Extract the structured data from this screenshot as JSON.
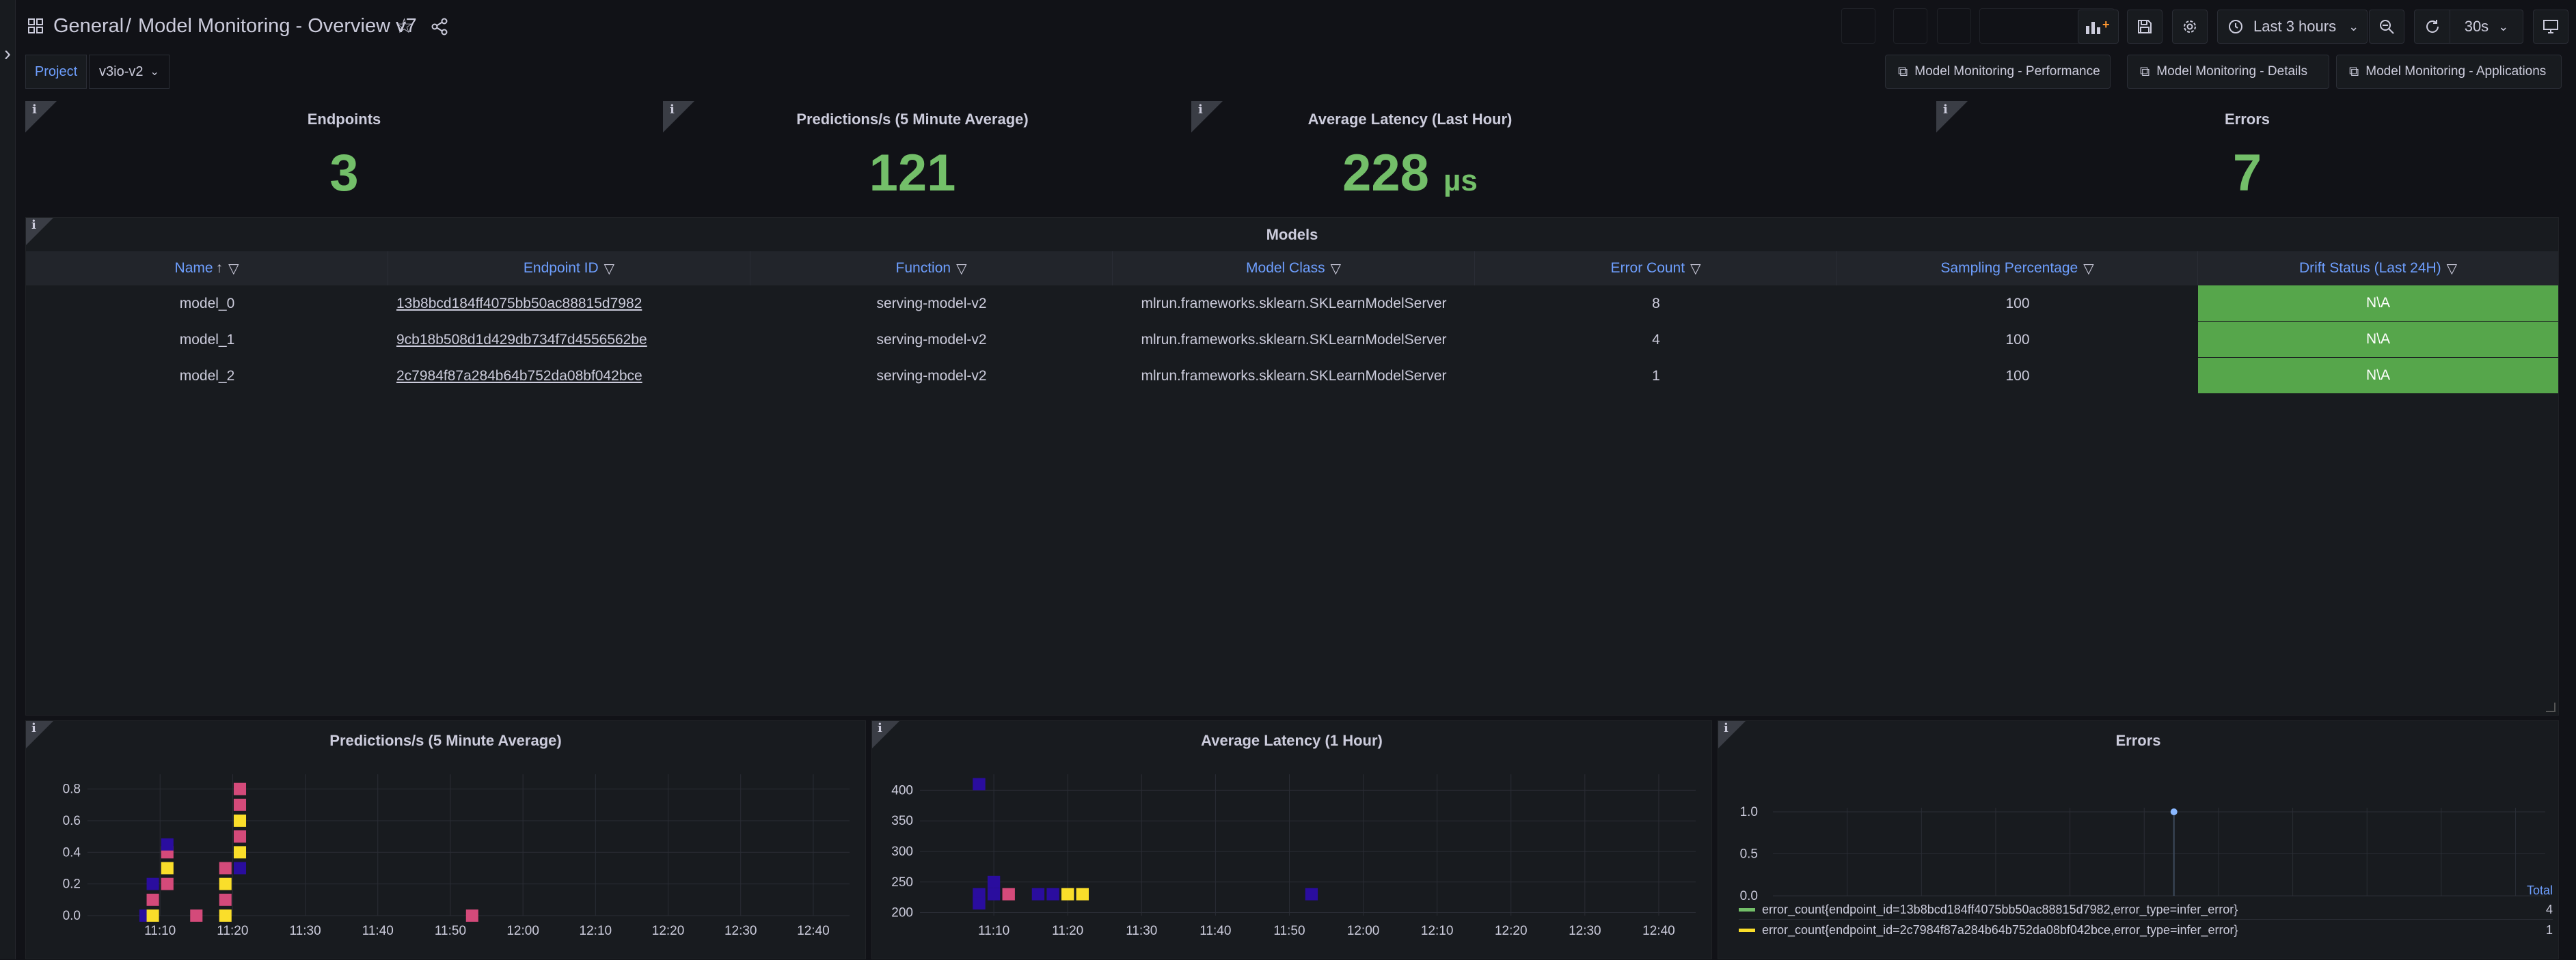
{
  "header": {
    "folder": "General",
    "separator": "/",
    "dashboard_title": "Model Monitoring - Overview v7",
    "time_range": "Last 3 hours",
    "refresh_interval": "30s"
  },
  "variables": {
    "project_label": "Project",
    "project_value": "v3io-v2"
  },
  "dashboard_links": [
    {
      "label": "Model Monitoring - Performance"
    },
    {
      "label": "Model Monitoring - Details"
    },
    {
      "label": "Model Monitoring - Applications"
    }
  ],
  "stats": [
    {
      "title": "Endpoints",
      "value": "3",
      "unit": ""
    },
    {
      "title": "Predictions/s (5 Minute Average)",
      "value": "121",
      "unit": ""
    },
    {
      "title": "Average Latency (Last Hour)",
      "value": "228",
      "unit": "µs"
    },
    {
      "title": "Errors",
      "value": "7",
      "unit": ""
    }
  ],
  "models_table": {
    "title": "Models",
    "columns": [
      "Name",
      "Endpoint ID",
      "Function",
      "Model Class",
      "Error Count",
      "Sampling Percentage",
      "Drift Status (Last 24H)"
    ],
    "sort_indicator": "↑",
    "rows": [
      {
        "name": "model_0",
        "endpoint_id": "13b8bcd184ff4075bb50ac88815d7982",
        "function": "serving-model-v2",
        "model_class": "mlrun.frameworks.sklearn.SKLearnModelServer",
        "error_count": "8",
        "sampling": "100",
        "drift": "N\\A"
      },
      {
        "name": "model_1",
        "endpoint_id": "9cb18b508d1d429db734f7d4556562be",
        "function": "serving-model-v2",
        "model_class": "mlrun.frameworks.sklearn.SKLearnModelServer",
        "error_count": "4",
        "sampling": "100",
        "drift": "N\\A"
      },
      {
        "name": "model_2",
        "endpoint_id": "2c7984f87a284b64b752da08bf042bce",
        "function": "serving-model-v2",
        "model_class": "mlrun.frameworks.sklearn.SKLearnModelServer",
        "error_count": "1",
        "sampling": "100",
        "drift": "N\\A"
      }
    ]
  },
  "colors": {
    "stat_green": "#73bf69",
    "drift_green": "#56a64b",
    "link_blue": "#6e9fff",
    "heat_low": "#2a0d9e",
    "heat_mid": "#d44a7a",
    "heat_high": "#fade2a"
  },
  "chart_data": [
    {
      "type": "heatmap",
      "title": "Predictions/s (5 Minute Average)",
      "x_ticks": [
        "11:10",
        "11:20",
        "11:30",
        "11:40",
        "11:50",
        "12:00",
        "12:10",
        "12:20",
        "12:30",
        "12:40"
      ],
      "y_ticks": [
        "0.0",
        "0.2",
        "0.4",
        "0.6",
        "0.8"
      ],
      "ylim": [
        0,
        0.85
      ],
      "cells": [
        {
          "t": "11:08",
          "y": 0.0,
          "level": "low"
        },
        {
          "t": "11:09",
          "y": 0.0,
          "level": "high"
        },
        {
          "t": "11:09",
          "y": 0.1,
          "level": "mid"
        },
        {
          "t": "11:09",
          "y": 0.2,
          "level": "low"
        },
        {
          "t": "11:11",
          "y": 0.2,
          "level": "mid"
        },
        {
          "t": "11:11",
          "y": 0.3,
          "level": "high"
        },
        {
          "t": "11:11",
          "y": 0.4,
          "level": "mid"
        },
        {
          "t": "11:11",
          "y": 0.45,
          "level": "low"
        },
        {
          "t": "11:15",
          "y": 0.0,
          "level": "mid"
        },
        {
          "t": "11:19",
          "y": 0.0,
          "level": "high"
        },
        {
          "t": "11:19",
          "y": 0.1,
          "level": "mid"
        },
        {
          "t": "11:19",
          "y": 0.2,
          "level": "high"
        },
        {
          "t": "11:19",
          "y": 0.3,
          "level": "mid"
        },
        {
          "t": "11:21",
          "y": 0.3,
          "level": "low"
        },
        {
          "t": "11:21",
          "y": 0.4,
          "level": "high"
        },
        {
          "t": "11:21",
          "y": 0.5,
          "level": "mid"
        },
        {
          "t": "11:21",
          "y": 0.6,
          "level": "high"
        },
        {
          "t": "11:21",
          "y": 0.7,
          "level": "mid"
        },
        {
          "t": "11:21",
          "y": 0.8,
          "level": "mid"
        },
        {
          "t": "11:53",
          "y": 0.0,
          "level": "mid"
        }
      ]
    },
    {
      "type": "heatmap",
      "title": "Average Latency (1 Hour)",
      "x_ticks": [
        "11:10",
        "11:20",
        "11:30",
        "11:40",
        "11:50",
        "12:00",
        "12:10",
        "12:20",
        "12:30",
        "12:40"
      ],
      "y_ticks": [
        "200",
        "250",
        "300",
        "350",
        "400"
      ],
      "ylim": [
        195,
        415
      ],
      "cells": [
        {
          "t": "11:08",
          "y": 410,
          "level": "low"
        },
        {
          "t": "11:08",
          "y": 230,
          "level": "low"
        },
        {
          "t": "11:08",
          "y": 215,
          "level": "low"
        },
        {
          "t": "11:10",
          "y": 250,
          "level": "low"
        },
        {
          "t": "11:10",
          "y": 230,
          "level": "low"
        },
        {
          "t": "11:12",
          "y": 230,
          "level": "mid"
        },
        {
          "t": "11:16",
          "y": 230,
          "level": "low"
        },
        {
          "t": "11:18",
          "y": 230,
          "level": "low"
        },
        {
          "t": "11:20",
          "y": 230,
          "level": "high"
        },
        {
          "t": "11:22",
          "y": 230,
          "level": "high"
        },
        {
          "t": "11:53",
          "y": 230,
          "level": "low"
        }
      ]
    },
    {
      "type": "line",
      "title": "Errors",
      "x_ticks": [
        "11:10",
        "11:20",
        "11:30",
        "11:40",
        "11:50",
        "12:00",
        "12:10",
        "12:20",
        "12:30",
        "12:40"
      ],
      "y_ticks": [
        "0.0",
        "0.5",
        "1.0"
      ],
      "ylim": [
        0,
        1
      ],
      "series": [
        {
          "name": "error_count{endpoint_id=13b8bcd184ff4075bb50ac88815d7982,error_type=infer_error}",
          "color": "#73bf69",
          "total": "4",
          "points": [
            {
              "t": "11:54",
              "y": 1.0
            }
          ]
        },
        {
          "name": "error_count{endpoint_id=2c7984f87a284b64b752da08bf042bce,error_type=infer_error}",
          "color": "#fade2a",
          "total": "1",
          "points": []
        }
      ],
      "legend_header": "Total"
    }
  ]
}
